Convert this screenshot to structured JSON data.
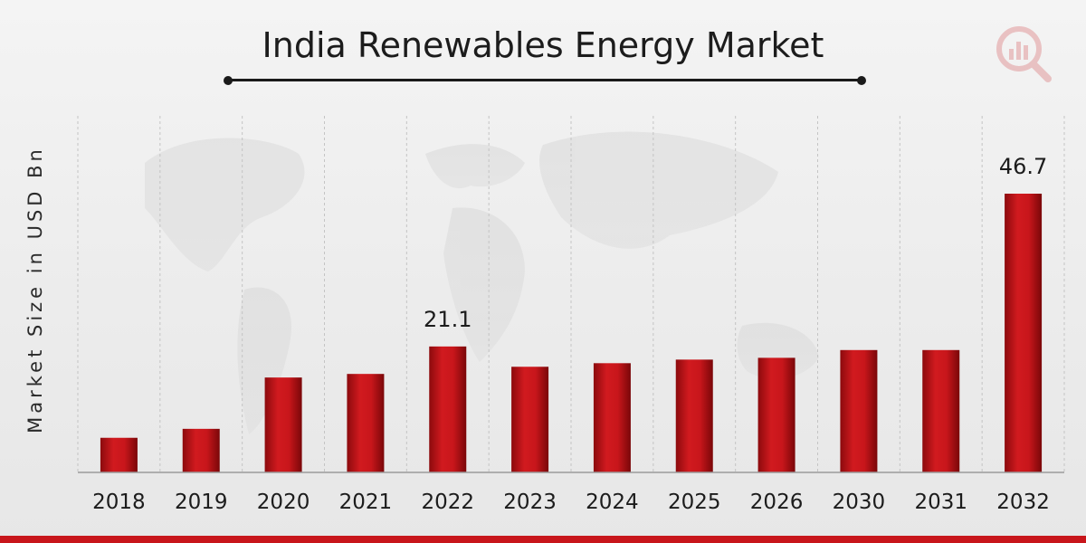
{
  "brand": {
    "accent": "#c8161b",
    "logo_icon": "magnifier-chart-logo-icon"
  },
  "chart_data": {
    "type": "bar",
    "title": "India Renewables Energy Market",
    "ylabel": "Market Size in USD Bn",
    "xlabel": "",
    "categories": [
      "2018",
      "2019",
      "2020",
      "2021",
      "2022",
      "2023",
      "2024",
      "2025",
      "2026",
      "2030",
      "2031",
      "2032"
    ],
    "values": [
      5.8,
      7.3,
      15.9,
      16.5,
      21.1,
      17.7,
      18.3,
      18.9,
      19.2,
      20.5,
      20.5,
      46.7
    ],
    "data_labels": [
      {
        "index": 4,
        "text": "21.1"
      },
      {
        "index": 11,
        "text": "46.7"
      }
    ],
    "colors": {
      "bar": "#c8161b"
    },
    "grid": "vertical-dashed",
    "legend": "none"
  }
}
